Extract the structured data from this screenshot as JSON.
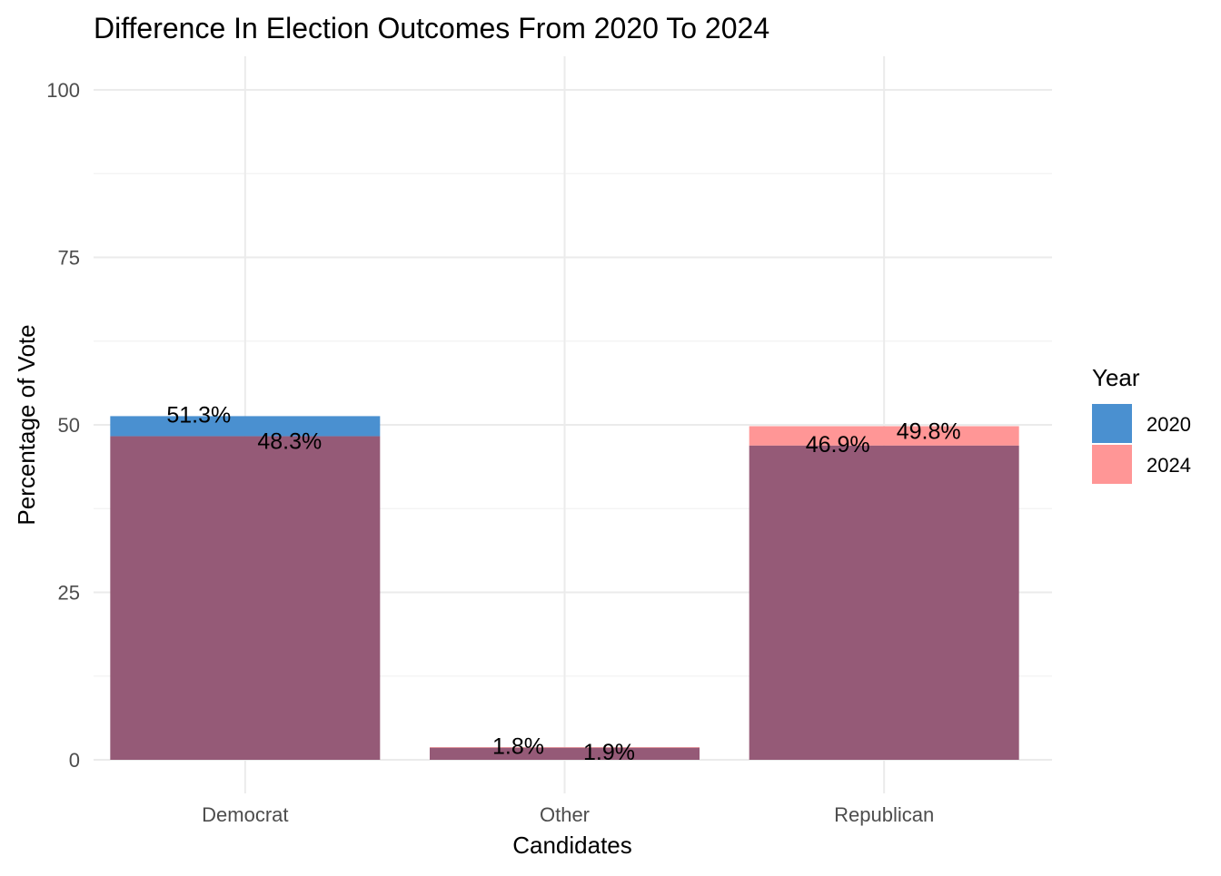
{
  "chart_data": {
    "type": "bar",
    "title": "Difference In Election Outcomes From 2020 To 2024",
    "xlabel": "Candidates",
    "ylabel": "Percentage of Vote",
    "categories": [
      "Democrat",
      "Other",
      "Republican"
    ],
    "ylim": [
      -5,
      105
    ],
    "yticks": [
      0,
      25,
      50,
      75,
      100
    ],
    "grid": true,
    "legend": {
      "title": "Year",
      "position": "right"
    },
    "series": [
      {
        "name": "2020",
        "color": "#4a90d0",
        "values": [
          51.3,
          1.8,
          46.9
        ],
        "labels": [
          "51.3%",
          "1.8%",
          "46.9%"
        ]
      },
      {
        "name": "2024",
        "color": "#ff9696",
        "values": [
          48.3,
          1.9,
          49.8
        ],
        "labels": [
          "48.3%",
          "1.9%",
          "49.8%"
        ]
      }
    ],
    "overlap_color": "#955a77"
  }
}
